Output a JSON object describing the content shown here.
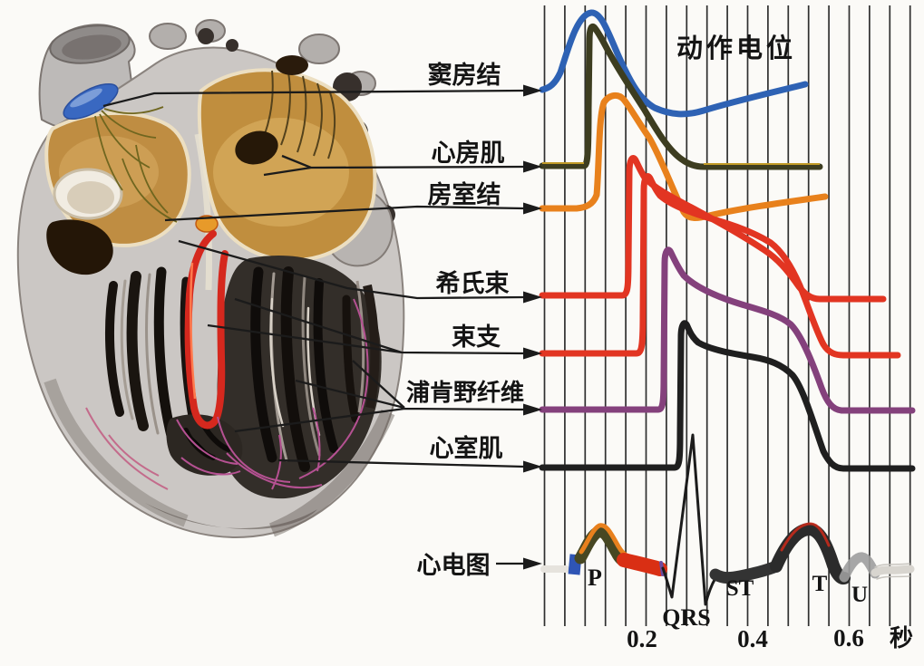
{
  "title": "动作电位",
  "labels": {
    "sa_node": "窦房结",
    "atrial_muscle": "心房肌",
    "av_node": "房室结",
    "his_bundle": "希氏束",
    "bundle_branches": "束支",
    "purkinje_fibers": "浦肯野纤维",
    "ventricular_muscle": "心室肌",
    "ecg": "心电图"
  },
  "ecg_waves": {
    "p": "P",
    "qrs": "QRS",
    "st": "ST",
    "t": "T",
    "u": "U"
  },
  "axis": {
    "t1": "0.2",
    "t2": "0.4",
    "t3": "0.6",
    "unit": "秒"
  },
  "colors": {
    "grid": "#2f2f2f",
    "ink": "#1b1b1b",
    "sa": "#2e62b4",
    "atrial": "#3d3d20",
    "atrial_highlight": "#c19a27",
    "av": "#e8811c",
    "his": "#e23522",
    "branch": "#e23522",
    "purkinje": "#84417c",
    "ventricular": "#1f1f1f",
    "ecg_blue": "#2f55b5",
    "ecg_p_body": "#474722",
    "ecg_p_top": "#e8801d",
    "ecg_red": "#d92f14",
    "ecg_dark": "#333333",
    "ecg_t_top": "#cc2a1a",
    "ecg_u": "#9d9d9d"
  },
  "chart_data": {
    "type": "line",
    "title": "动作电位",
    "xlabel": "秒",
    "x_ticks": [
      0.2,
      0.4,
      0.6
    ],
    "x_range": [
      0,
      0.72
    ],
    "grid": "vertical lines every 0.04 s",
    "series": [
      {
        "name": "窦房结",
        "color": "#2e62b4",
        "activation_time_s": 0.05,
        "shape": "slow diastolic depolarization, rounded peak at ~0.09 s, trough ~0.29 s, slow rise to end"
      },
      {
        "name": "心房肌",
        "color": "#3d3d20",
        "activation_time_s": 0.09,
        "shape": "fast upstroke, short spike-and-decline, back to flat baseline by ~0.31 s"
      },
      {
        "name": "房室结",
        "color": "#e8811c",
        "activation_time_s": 0.11,
        "shape": "slower upstroke, rounded dome, falls to trough ~0.28 s then slow diastolic rise"
      },
      {
        "name": "希氏束",
        "color": "#e23522",
        "activation_time_s": 0.17,
        "shape": "fast upstroke, long declining plateau, repolarizes ~0.56 s"
      },
      {
        "name": "束支",
        "color": "#e23522",
        "activation_time_s": 0.2,
        "shape": "fast upstroke, longer plateau, crosses His trace, repolarizes ~0.59 s"
      },
      {
        "name": "浦肯野纤维",
        "color": "#84417c",
        "activation_time_s": 0.24,
        "shape": "fast upstroke, longest plateau, repolarizes ~0.60 s"
      },
      {
        "name": "心室肌",
        "color": "#1f1f1f",
        "activation_time_s": 0.27,
        "shape": "fast upstroke with notch, plateau, repolarizes ~0.59 s"
      }
    ],
    "ecg": {
      "segments": [
        "P wave ~0.07-0.16 s (blue/olive/orange)",
        "PR segment red ~0.16-0.23 s",
        "QRS spike ~0.24-0.32 s tall thin R wave",
        "ST segment ~0.34-0.46 s",
        "T wave peak ~0.53 s",
        "U wave ~0.61 s fading"
      ]
    }
  }
}
